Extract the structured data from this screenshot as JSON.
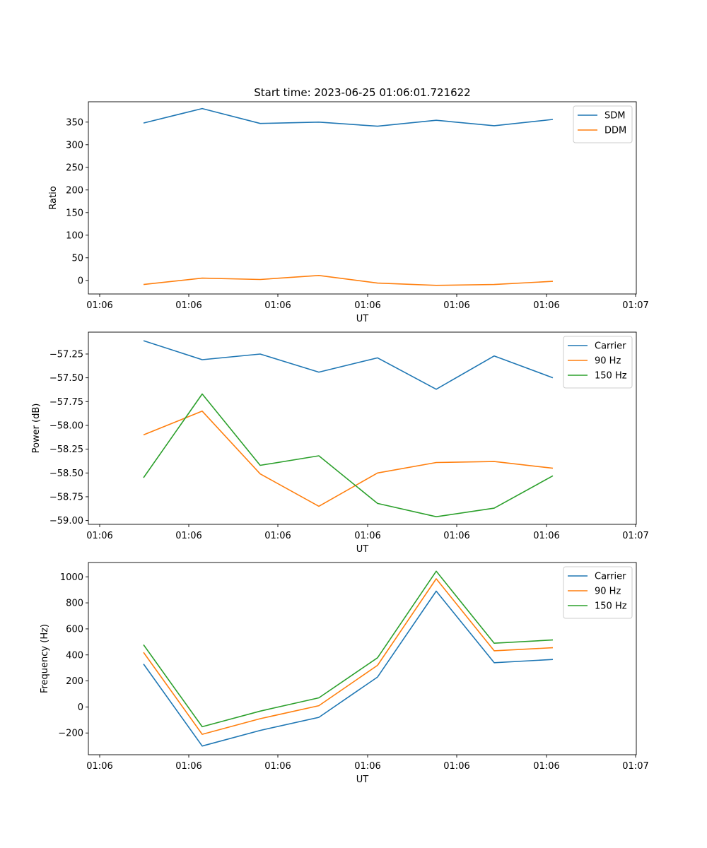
{
  "figure": {
    "title": "Start time: 2023-06-25 01:06:01.721622"
  },
  "chart_data": [
    {
      "type": "line",
      "title": "Start time: 2023-06-25 01:06:01.721622",
      "xlabel": "UT",
      "ylabel": "Ratio",
      "x_ticks": [
        "01:06",
        "01:06",
        "01:06",
        "01:06",
        "01:06",
        "01:06",
        "01:07"
      ],
      "y_ticks": [
        0,
        50,
        100,
        150,
        200,
        250,
        300,
        350
      ],
      "ylim": [
        -30,
        395
      ],
      "legend": "top-right",
      "series": [
        {
          "name": "SDM",
          "color": "#1f77b4",
          "values": [
            348,
            380,
            347,
            350,
            341,
            354,
            342,
            356
          ]
        },
        {
          "name": "DDM",
          "color": "#ff7f0e",
          "values": [
            -9,
            5,
            2,
            11,
            -6,
            -11,
            -9,
            -2
          ]
        }
      ]
    },
    {
      "type": "line",
      "xlabel": "UT",
      "ylabel": "Power (dB)",
      "x_ticks": [
        "01:06",
        "01:06",
        "01:06",
        "01:06",
        "01:06",
        "01:06",
        "01:07"
      ],
      "y_ticks": [
        "−57.25",
        "−57.50",
        "−57.75",
        "−58.00",
        "−58.25",
        "−58.50",
        "−58.75",
        "−59.00"
      ],
      "y_tick_values": [
        -57.25,
        -57.5,
        -57.75,
        -58.0,
        -58.25,
        -58.5,
        -58.75,
        -59.0
      ],
      "ylim": [
        -59.04,
        -57.02
      ],
      "legend": "top-right",
      "series": [
        {
          "name": "Carrier",
          "color": "#1f77b4",
          "values": [
            -57.11,
            -57.31,
            -57.25,
            -57.44,
            -57.29,
            -57.62,
            -57.27,
            -57.5
          ]
        },
        {
          "name": "90 Hz",
          "color": "#ff7f0e",
          "values": [
            -58.1,
            -57.85,
            -58.51,
            -58.85,
            -58.5,
            -58.39,
            -58.38,
            -58.45
          ]
        },
        {
          "name": "150 Hz",
          "color": "#2ca02c",
          "values": [
            -58.55,
            -57.67,
            -58.42,
            -58.32,
            -58.82,
            -58.96,
            -58.87,
            -58.53
          ]
        }
      ]
    },
    {
      "type": "line",
      "xlabel": "UT",
      "ylabel": "Frequency (Hz)",
      "x_ticks": [
        "01:06",
        "01:06",
        "01:06",
        "01:06",
        "01:06",
        "01:06",
        "01:07"
      ],
      "y_ticks": [
        "−200",
        "0",
        "200",
        "400",
        "600",
        "800",
        "1000"
      ],
      "y_tick_values": [
        -200,
        0,
        200,
        400,
        600,
        800,
        1000
      ],
      "ylim": [
        -367,
        1110
      ],
      "legend": "top-right",
      "series": [
        {
          "name": "Carrier",
          "color": "#1f77b4",
          "values": [
            330,
            -300,
            -180,
            -80,
            230,
            890,
            340,
            365
          ]
        },
        {
          "name": "90 Hz",
          "color": "#ff7f0e",
          "values": [
            420,
            -210,
            -90,
            10,
            320,
            985,
            432,
            455
          ]
        },
        {
          "name": "150 Hz",
          "color": "#2ca02c",
          "values": [
            478,
            -152,
            -32,
            70,
            378,
            1043,
            490,
            515
          ]
        }
      ]
    }
  ]
}
